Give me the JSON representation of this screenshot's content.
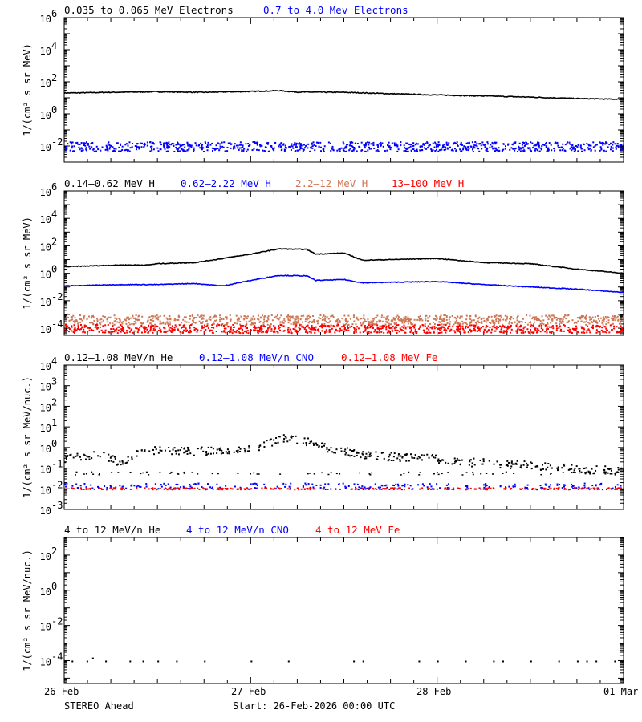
{
  "footer": {
    "spacecraft": "STEREO Ahead",
    "start": "Start: 26-Feb-2026 00:00 UTC"
  },
  "x_ticks": [
    "26-Feb",
    "27-Feb",
    "28-Feb",
    "01-Mar"
  ],
  "colors": {
    "black": "#000000",
    "blue": "#0000ff",
    "salmon": "#cc7755",
    "red": "#ff0000"
  },
  "chart_data": [
    {
      "type": "scatter",
      "panel": "electrons",
      "ylabel": "1/(cm² s sr MeV)",
      "log_y": true,
      "ylim": [
        0.001,
        1000000
      ],
      "yticks": [
        {
          "v": 1000000,
          "base": "10",
          "exp": "6"
        },
        {
          "v": 10000,
          "base": "10",
          "exp": "4"
        },
        {
          "v": 100,
          "base": "10",
          "exp": "2"
        },
        {
          "v": 1,
          "base": "10",
          "exp": "0"
        },
        {
          "v": 0.01,
          "base": "10",
          "exp": "-2"
        }
      ],
      "xlim": [
        0,
        3
      ],
      "series": [
        {
          "name": "0.035 to 0.065 MeV Electrons",
          "color": "#000000",
          "line": true,
          "x": [
            0,
            0.25,
            0.5,
            0.75,
            1.0,
            1.15,
            1.25,
            1.5,
            1.75,
            2.0,
            2.25,
            2.5,
            2.75,
            3.0
          ],
          "y": [
            20,
            22,
            24,
            22,
            25,
            28,
            23,
            22,
            18,
            15,
            13,
            11,
            9,
            8
          ]
        },
        {
          "name": "0.7 to 4.0 Mev Electrons",
          "color": "#0000ff",
          "line": false,
          "band": [
            0.005,
            0.02
          ]
        }
      ]
    },
    {
      "type": "scatter",
      "panel": "protons",
      "ylabel": "1/(cm² s sr MeV)",
      "log_y": true,
      "ylim": [
        3e-05,
        1000000
      ],
      "yticks": [
        {
          "v": 1000000,
          "base": "10",
          "exp": "6"
        },
        {
          "v": 10000,
          "base": "10",
          "exp": "4"
        },
        {
          "v": 100,
          "base": "10",
          "exp": "2"
        },
        {
          "v": 1,
          "base": "10",
          "exp": "0"
        },
        {
          "v": 0.01,
          "base": "10",
          "exp": "-2"
        },
        {
          "v": 0.0001,
          "base": "10",
          "exp": "-4"
        }
      ],
      "xlim": [
        0,
        3
      ],
      "series": [
        {
          "name": "0.14–0.62 MeV H",
          "color": "#000000",
          "line": true,
          "x": [
            0,
            0.3,
            0.45,
            0.5,
            0.7,
            0.85,
            1.0,
            1.15,
            1.3,
            1.35,
            1.5,
            1.6,
            1.75,
            2.0,
            2.25,
            2.5,
            2.75,
            3.0
          ],
          "y": [
            3,
            4,
            4,
            5,
            6,
            12,
            25,
            60,
            55,
            25,
            30,
            9,
            10,
            12,
            6,
            5,
            2,
            1
          ]
        },
        {
          "name": "0.62–2.22 MeV H",
          "color": "#0000ff",
          "line": true,
          "x": [
            0,
            0.3,
            0.5,
            0.7,
            0.85,
            1.0,
            1.15,
            1.3,
            1.35,
            1.5,
            1.6,
            1.75,
            2.0,
            2.25,
            2.5,
            2.75,
            3.0
          ],
          "y": [
            0.12,
            0.15,
            0.15,
            0.18,
            0.12,
            0.3,
            0.7,
            0.65,
            0.3,
            0.35,
            0.2,
            0.22,
            0.25,
            0.15,
            0.1,
            0.07,
            0.04
          ]
        },
        {
          "name": "2.2–12 MeV H",
          "color": "#cc7755",
          "line": false,
          "band": [
            0.0002,
            0.001
          ]
        },
        {
          "name": "13–100 MeV H",
          "color": "#ff0000",
          "line": false,
          "band": [
            5e-05,
            0.0002
          ]
        }
      ]
    },
    {
      "type": "scatter",
      "panel": "heavy_low",
      "ylabel": "1/(cm² s sr MeV/nuc.)",
      "log_y": true,
      "ylim": [
        0.001,
        10000
      ],
      "yticks": [
        {
          "v": 10000,
          "base": "10",
          "exp": "4"
        },
        {
          "v": 1000,
          "base": "10",
          "exp": "3"
        },
        {
          "v": 100,
          "base": "10",
          "exp": "2"
        },
        {
          "v": 10,
          "base": "10",
          "exp": "1"
        },
        {
          "v": 1,
          "base": "10",
          "exp": "0"
        },
        {
          "v": 0.1,
          "base": "10",
          "exp": "-1"
        },
        {
          "v": 0.01,
          "base": "10",
          "exp": "-2"
        },
        {
          "v": 0.001,
          "base": "10",
          "exp": "-3"
        }
      ],
      "xlim": [
        0,
        3
      ],
      "series": [
        {
          "name": "0.12–1.08 MeV/n He",
          "color": "#000000",
          "line": false,
          "x": [
            0,
            0.2,
            0.3,
            0.4,
            0.5,
            0.7,
            0.9,
            1.0,
            1.1,
            1.2,
            1.3,
            1.4,
            1.6,
            1.8,
            2.0,
            2.2,
            2.5,
            2.7,
            3.0
          ],
          "y": [
            0.3,
            0.5,
            0.2,
            0.6,
            0.8,
            0.7,
            0.8,
            1.0,
            1.8,
            3.5,
            2.0,
            1.0,
            0.5,
            0.35,
            0.3,
            0.2,
            0.15,
            0.1,
            0.08
          ]
        },
        {
          "name": "0.12–1.08 MeV/n CNO",
          "color": "#0000ff",
          "line": false,
          "band": [
            0.01,
            0.02
          ]
        },
        {
          "name": "0.12–1.08 MeV Fe",
          "color": "#ff0000",
          "line": false,
          "band": [
            0.01,
            0.012
          ]
        }
      ]
    },
    {
      "type": "scatter",
      "panel": "heavy_high",
      "ylabel": "1/(cm² s sr MeV/nuc.)",
      "log_y": true,
      "ylim": [
        5e-06,
        1000
      ],
      "yticks": [
        {
          "v": 100,
          "base": "10",
          "exp": "2"
        },
        {
          "v": 1,
          "base": "10",
          "exp": "0"
        },
        {
          "v": 0.01,
          "base": "10",
          "exp": "-2"
        },
        {
          "v": 0.0001,
          "base": "10",
          "exp": "-4"
        }
      ],
      "xlim": [
        0,
        3
      ],
      "series": [
        {
          "name": "4 to 12 MeV/n He",
          "color": "#000000",
          "line": false,
          "x": [
            0.04,
            0.12,
            0.15,
            0.22,
            0.35,
            0.42,
            0.5,
            0.6,
            0.75,
            1.0,
            1.2,
            1.55,
            1.6,
            1.9,
            2.0,
            2.15,
            2.3,
            2.35,
            2.5,
            2.65,
            2.75,
            2.8,
            2.85,
            2.95
          ],
          "y": [
            0.0001,
            0.0001,
            0.00015,
            0.0001,
            0.0001,
            0.0001,
            0.0001,
            0.0001,
            0.0001,
            0.0001,
            0.0001,
            0.0001,
            0.0001,
            0.0001,
            0.0001,
            0.0001,
            0.0001,
            0.0001,
            0.0001,
            0.0001,
            0.0001,
            0.0001,
            0.0001,
            0.0001
          ]
        },
        {
          "name": "4 to 12 MeV/n CNO",
          "color": "#0000ff",
          "line": false
        },
        {
          "name": "4 to 12 MeV Fe",
          "color": "#ff0000",
          "line": false
        }
      ]
    }
  ]
}
